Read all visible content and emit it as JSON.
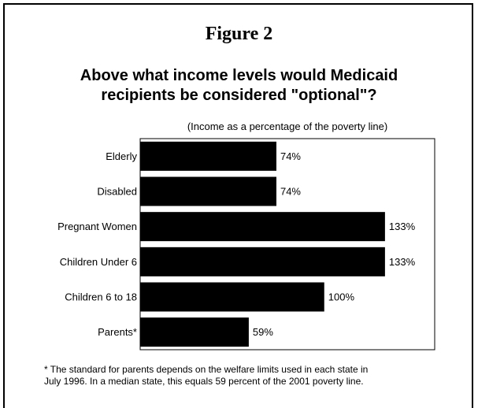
{
  "figure_title": "Figure 2",
  "question": {
    "line1": "Above what income levels would Medicaid",
    "line2": "recipients be considered \"optional\"?"
  },
  "chart_data": {
    "type": "bar",
    "orientation": "horizontal",
    "subtitle": "(Income as a percentage of the poverty line)",
    "categories": [
      "Elderly",
      "Disabled",
      "Pregnant Women",
      "Children Under 6",
      "Children 6 to 18",
      "Parents*"
    ],
    "values": [
      74,
      74,
      133,
      133,
      100,
      59
    ],
    "value_labels": [
      "74%",
      "74%",
      "133%",
      "133%",
      "100%",
      "59%"
    ],
    "xlim": [
      0,
      160
    ],
    "bar_color": "#000000",
    "grid": false,
    "legend": "none"
  },
  "footnote": {
    "line1": "* The standard for parents depends on the welfare limits used in each state in",
    "line2": "July 1996.  In a median state, this equals 59 percent of the 2001 poverty line."
  }
}
